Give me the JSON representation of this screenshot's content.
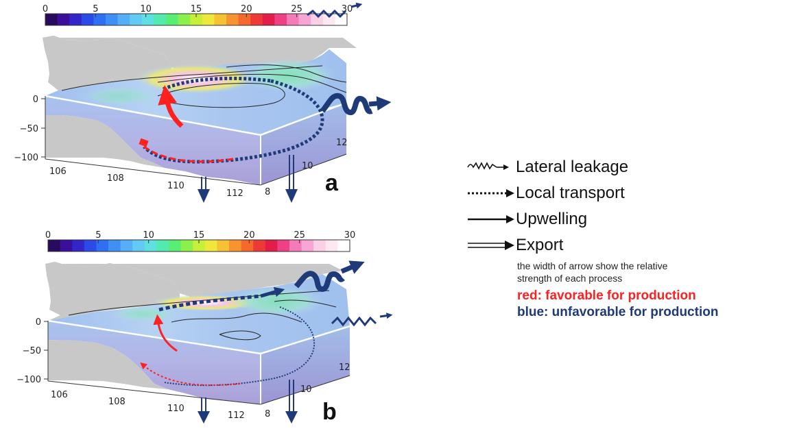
{
  "colorbar": {
    "ticks": [
      "0",
      "5",
      "10",
      "15",
      "20",
      "25",
      "30"
    ],
    "colors": [
      "#2a0a5e",
      "#3b0f9a",
      "#3325c8",
      "#2b4be8",
      "#2f6ff2",
      "#3f8ff5",
      "#55aef7",
      "#63c9f5",
      "#5fe0e0",
      "#52eab0",
      "#58ee74",
      "#8cf04a",
      "#c6ef3a",
      "#eee83a",
      "#f6c133",
      "#f79430",
      "#f56a2c",
      "#ee3a36",
      "#e31c4a",
      "#ef3f85",
      "#f57ab8",
      "#f7a6d3",
      "#fbd0e6",
      "#fde8f2",
      "#ffffff"
    ]
  },
  "panels": [
    {
      "letter": "a",
      "depth_ticks": [
        "0",
        "−50",
        "−100"
      ],
      "lon_ticks": [
        "106",
        "108",
        "110",
        "112"
      ],
      "lat_ticks": [
        "12",
        "10",
        "8"
      ]
    },
    {
      "letter": "b",
      "depth_ticks": [
        "0",
        "−50",
        "−100"
      ],
      "lon_ticks": [
        "106",
        "108",
        "110",
        "112"
      ],
      "lat_ticks": [
        "12",
        "10",
        "8"
      ]
    }
  ],
  "legend": {
    "lateral": "Lateral leakage",
    "local": "Local transport",
    "upwelling": "Upwelling",
    "export": "Export",
    "note_line1": "the width of arrow show the relative",
    "note_line2": "strength of each process",
    "red_note": "red: favorable for production",
    "blue_note": "blue: unfavorable for production"
  },
  "style_colors": {
    "favorable": "#ff2020",
    "unfavorable": "#1f3a78",
    "land": "#c8c8c8",
    "sea": "#a9c6ef"
  }
}
